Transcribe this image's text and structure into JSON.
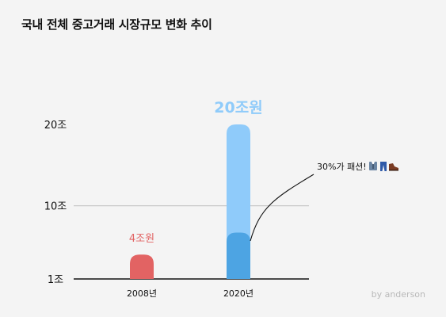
{
  "title": "국내 전체 중고거래 시장규모 변화 추이",
  "credit": "by anderson",
  "chart_data": {
    "type": "bar",
    "title": "국내 전체 중고거래 시장규모 변화 추이",
    "categories": [
      "2008년",
      "2020년"
    ],
    "values": [
      4,
      20
    ],
    "value_labels": [
      "4조원",
      "20조원"
    ],
    "y_ticks": [
      {
        "label": "20조",
        "value": 20
      },
      {
        "label": "10조",
        "value": 10
      },
      {
        "label": "1조",
        "value": 1
      }
    ],
    "ylim": [
      1,
      20
    ],
    "grid": "horizontal line at 10조",
    "annotation": {
      "text": "30%가 패션!",
      "icons": [
        "suit-icon",
        "jeans-icon",
        "shoe-icon"
      ],
      "fraction_of_2020": 0.3
    },
    "colors": {
      "bar_2008": "#e26363",
      "bar_2020": "#8fcbfa",
      "bar_2020_fashion": "#4da4e3",
      "label_2008": "#e26363",
      "label_2020": "#8fcbfa",
      "gridline": "#c8c8c8",
      "axis": "#111111"
    }
  }
}
